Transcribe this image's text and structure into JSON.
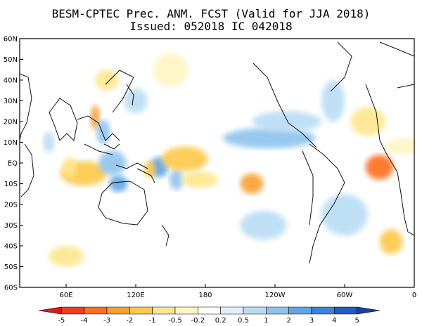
{
  "title": {
    "line1": "BESM-CPTEC Prec. ANM. FCST  (Valid for JJA 2018)",
    "line2": "Issued:  052018 IC 042018"
  },
  "axes": {
    "lat_labels": [
      "60N",
      "50N",
      "40N",
      "30N",
      "20N",
      "10N",
      "EQ",
      "10S",
      "20S",
      "30S",
      "40S",
      "50S",
      "60S"
    ],
    "lon_labels": [
      "60E",
      "120E",
      "180",
      "120W",
      "60W",
      "0"
    ]
  },
  "colorbar": {
    "ticks": [
      "-5",
      "-4",
      "-3",
      "-2",
      "-1",
      "-0.5",
      "-0.2",
      "0.2",
      "0.5",
      "1",
      "2",
      "3",
      "4",
      "5"
    ],
    "colors": [
      "#d7191c",
      "#f03b20",
      "#fd6e1f",
      "#f7a030",
      "#fdc84a",
      "#fde68c",
      "#fff5c0",
      "#ffffff",
      "#e1f1fb",
      "#b9dcf4",
      "#8ec3ee",
      "#5ea6e6",
      "#3b82d9",
      "#1f5cc4",
      "#1a3fa3"
    ]
  },
  "anomalies": [
    {
      "lon": 75,
      "lat": -5,
      "rx": 20,
      "ry": 6,
      "level": -3
    },
    {
      "lon": 63,
      "lat": -2,
      "rx": 6,
      "ry": 5,
      "level": -2
    },
    {
      "lon": 85,
      "lat": 22,
      "rx": 4,
      "ry": 6,
      "level": -4
    },
    {
      "lon": 92,
      "lat": 15,
      "rx": 6,
      "ry": 6,
      "level": 3
    },
    {
      "lon": 100,
      "lat": 0,
      "rx": 12,
      "ry": 6,
      "level": 3
    },
    {
      "lon": 105,
      "lat": -10,
      "rx": 8,
      "ry": 4,
      "level": 4
    },
    {
      "lon": 140,
      "lat": -2,
      "rx": 8,
      "ry": 5,
      "level": 4
    },
    {
      "lon": 155,
      "lat": -8,
      "rx": 6,
      "ry": 5,
      "level": 3
    },
    {
      "lon": 132,
      "lat": -3,
      "rx": 5,
      "ry": 4,
      "level": -3
    },
    {
      "lon": 162,
      "lat": 2,
      "rx": 20,
      "ry": 6,
      "level": -3
    },
    {
      "lon": 175,
      "lat": -8,
      "rx": 16,
      "ry": 4,
      "level": -2
    },
    {
      "lon": 220,
      "lat": -10,
      "rx": 10,
      "ry": 5,
      "level": -4
    },
    {
      "lon": 235,
      "lat": 12,
      "rx": 40,
      "ry": 5,
      "level": 3
    },
    {
      "lon": 250,
      "lat": 20,
      "rx": 30,
      "ry": 5,
      "level": 2
    },
    {
      "lon": 330,
      "lat": -2,
      "rx": 12,
      "ry": 6,
      "level": -5
    },
    {
      "lon": 320,
      "lat": 20,
      "rx": 15,
      "ry": 7,
      "level": -2
    },
    {
      "lon": 290,
      "lat": 30,
      "rx": 10,
      "ry": 10,
      "level": 2
    },
    {
      "lon": 300,
      "lat": -25,
      "rx": 20,
      "ry": 10,
      "level": 2
    },
    {
      "lon": 230,
      "lat": -30,
      "rx": 20,
      "ry": 7,
      "level": 2
    },
    {
      "lon": 340,
      "lat": -38,
      "rx": 10,
      "ry": 6,
      "level": -3
    },
    {
      "lon": 350,
      "lat": 8,
      "rx": 15,
      "ry": 4,
      "level": -1
    },
    {
      "lon": 150,
      "lat": 45,
      "rx": 15,
      "ry": 8,
      "level": -1
    },
    {
      "lon": 95,
      "lat": 40,
      "rx": 10,
      "ry": 5,
      "level": -2
    },
    {
      "lon": 60,
      "lat": -45,
      "rx": 15,
      "ry": 5,
      "level": -2
    },
    {
      "lon": 120,
      "lat": 30,
      "rx": 10,
      "ry": 6,
      "level": 2
    },
    {
      "lon": 45,
      "lat": 10,
      "rx": 5,
      "ry": 5,
      "level": 2
    }
  ]
}
